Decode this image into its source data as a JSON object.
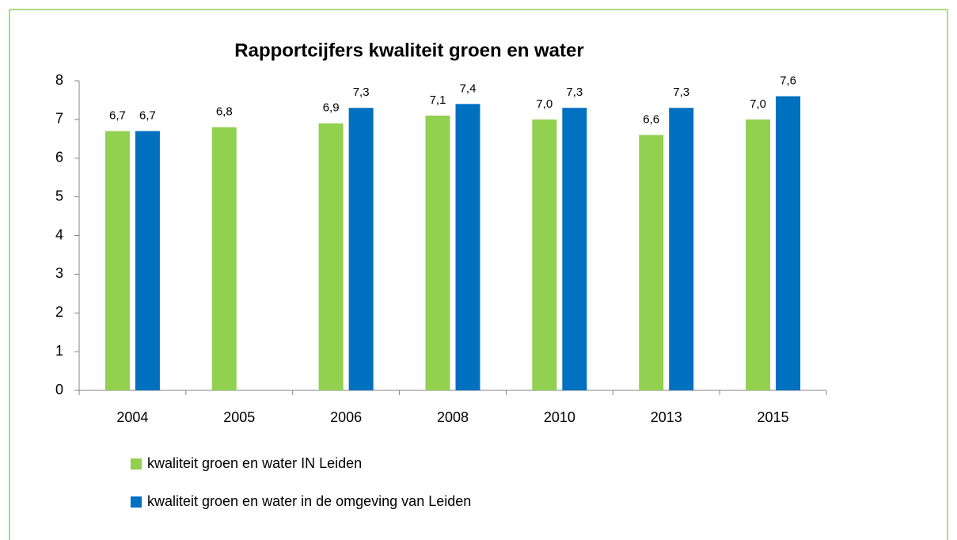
{
  "chart_data": {
    "type": "bar",
    "title": "Rapportcijfers kwaliteit groen en water",
    "categories": [
      "2004",
      "2005",
      "2006",
      "2008",
      "2010",
      "2013",
      "2015"
    ],
    "series": [
      {
        "name": "kwaliteit groen en water IN Leiden",
        "color": "#92d050",
        "values": [
          6.7,
          6.8,
          6.9,
          7.1,
          7.0,
          6.6,
          7.0
        ],
        "value_labels": [
          "6,7",
          "6,8",
          "6,9",
          "7,1",
          "7,0",
          "6,6",
          "7,0"
        ]
      },
      {
        "name": "kwaliteit groen en water in de omgeving van Leiden",
        "color": "#0070c0",
        "values": [
          6.7,
          null,
          7.3,
          7.4,
          7.3,
          7.3,
          7.6
        ],
        "value_labels": [
          "6,7",
          null,
          "7,3",
          "7,4",
          "7,3",
          "7,3",
          "7,6"
        ]
      }
    ],
    "ylim": [
      0,
      8
    ],
    "yticks": [
      0,
      1,
      2,
      3,
      4,
      5,
      6,
      7,
      8
    ],
    "grid": false
  }
}
